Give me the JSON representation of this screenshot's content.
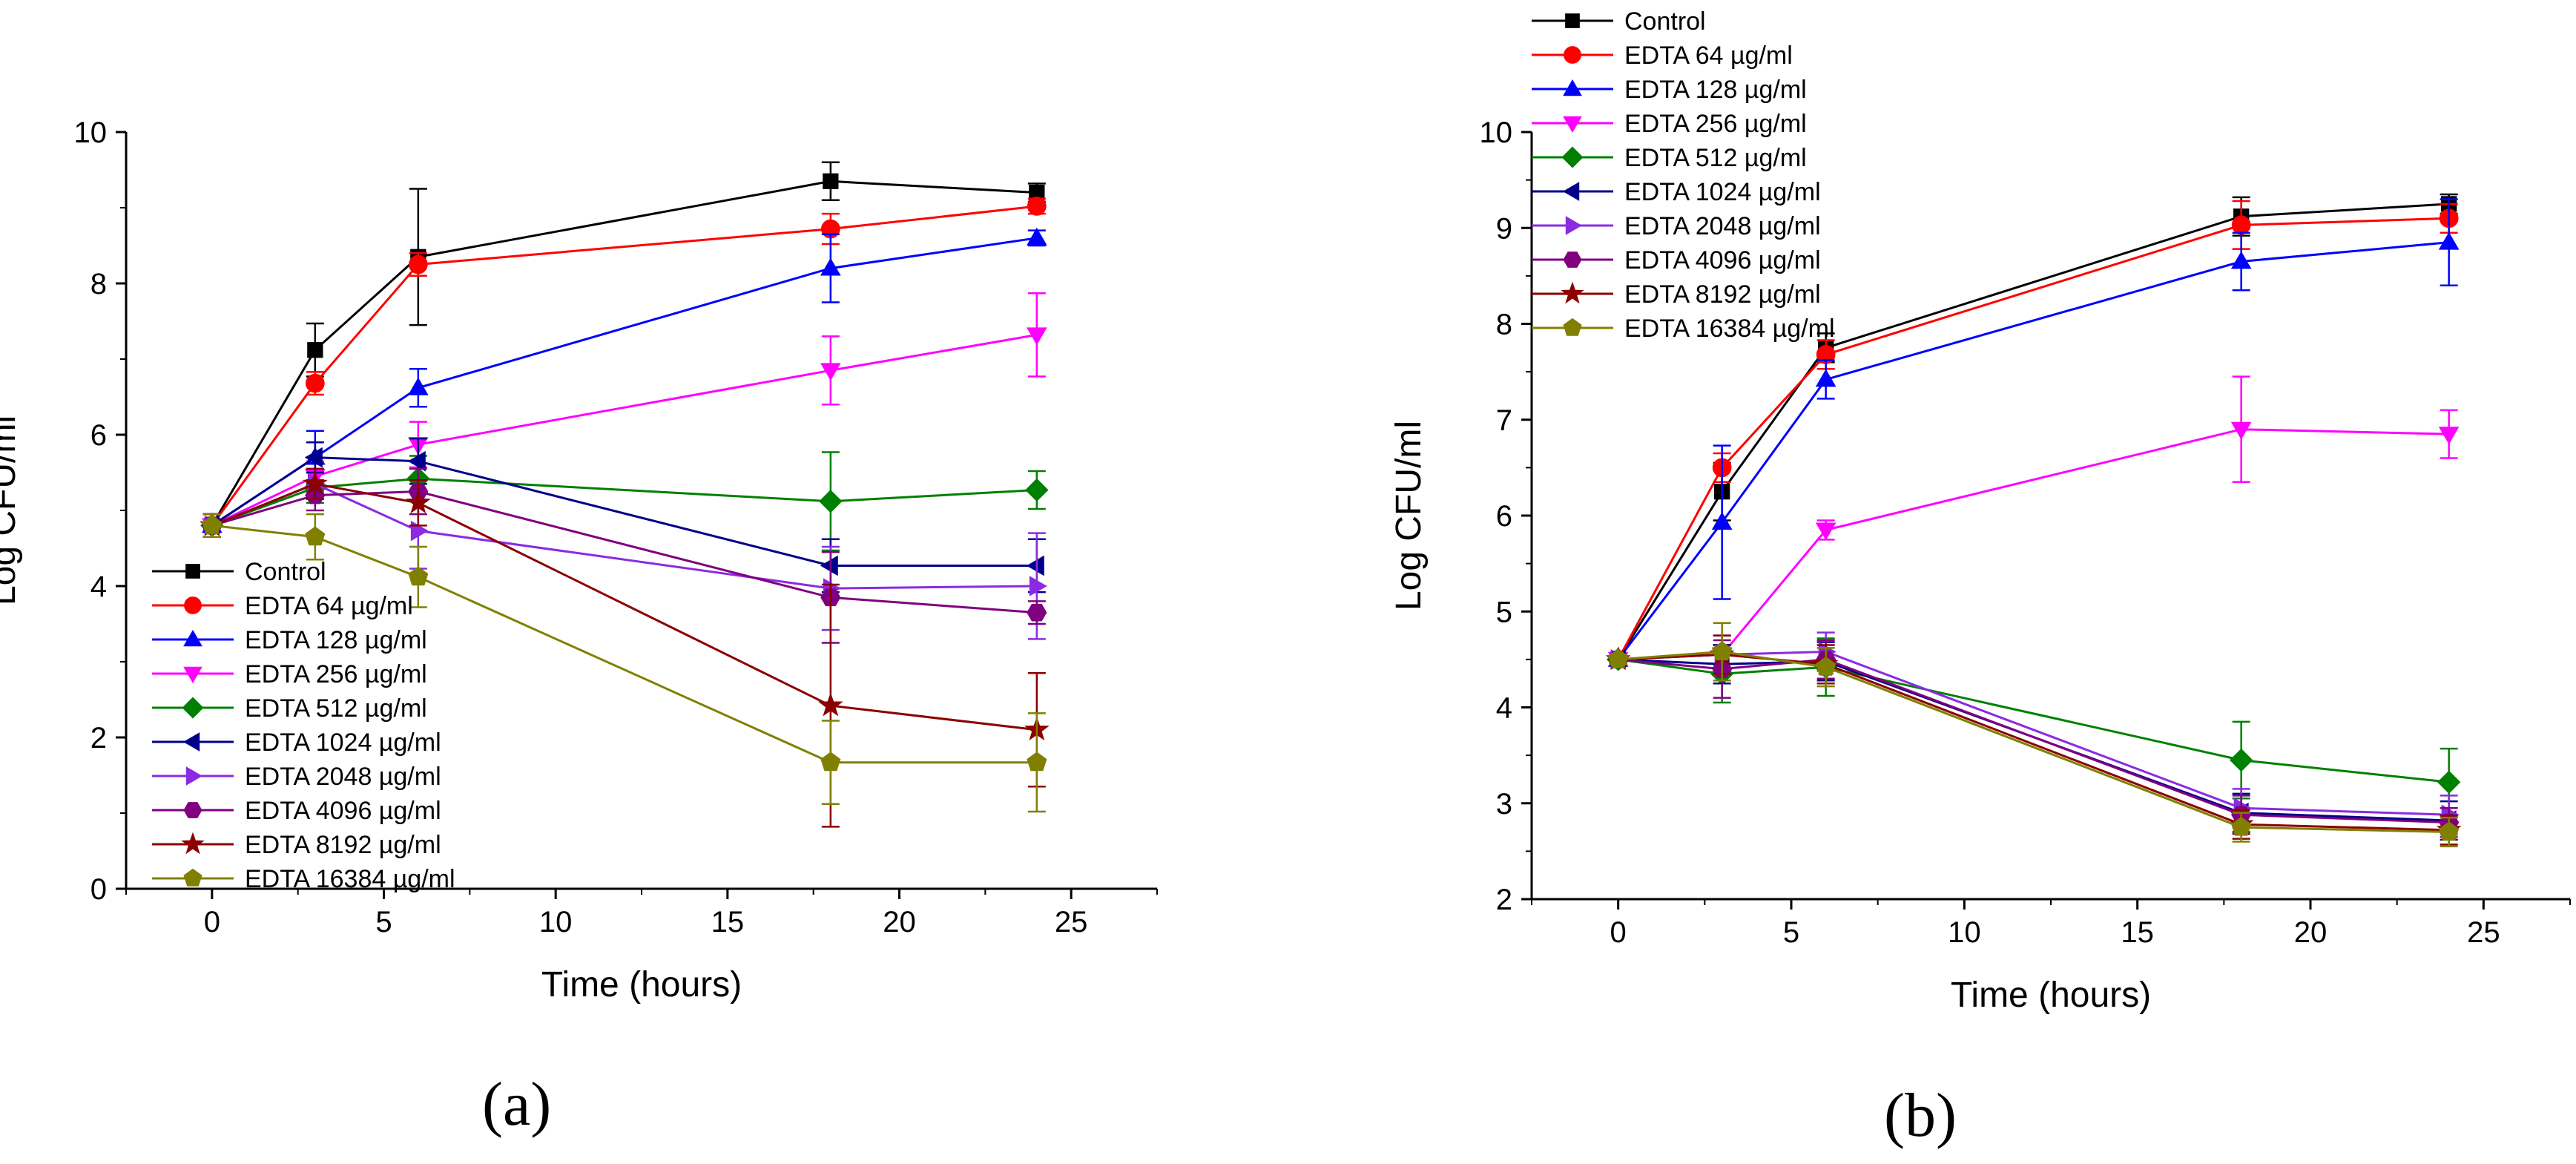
{
  "chart_data": [
    {
      "type": "line",
      "panel_label": "(a)",
      "xlabel": "Time (hours)",
      "ylabel": "Log CFU/ml",
      "xlim": [
        -2.5,
        27.5
      ],
      "ylim": [
        0,
        10
      ],
      "xticks": [
        0,
        5,
        10,
        15,
        20,
        25
      ],
      "yticks": [
        0,
        2,
        4,
        6,
        8,
        10
      ],
      "x": [
        0,
        3,
        6,
        18,
        24
      ],
      "legend_position": "bottom-left",
      "series": [
        {
          "name": "Control",
          "color": "#000000",
          "marker": "square",
          "values": [
            4.8,
            7.12,
            8.35,
            9.35,
            9.2
          ],
          "errors": [
            0.15,
            0.35,
            0.9,
            0.25,
            0.12
          ]
        },
        {
          "name": "EDTA 64 µg/ml",
          "color": "#ff0000",
          "marker": "circle",
          "values": [
            4.8,
            6.68,
            8.25,
            8.72,
            9.02
          ],
          "errors": [
            0.15,
            0.15,
            0.15,
            0.2,
            0.1
          ]
        },
        {
          "name": "EDTA 128 µg/ml",
          "color": "#0000ff",
          "marker": "triangle-up",
          "values": [
            4.8,
            5.7,
            6.62,
            8.2,
            8.6
          ],
          "errors": [
            0.15,
            0.35,
            0.25,
            0.45,
            0.1
          ]
        },
        {
          "name": "EDTA 256 µg/ml",
          "color": "#ff00ff",
          "marker": "triangle-down",
          "values": [
            4.8,
            5.45,
            5.87,
            6.85,
            7.32
          ],
          "errors": [
            0.15,
            0.2,
            0.3,
            0.45,
            0.55
          ]
        },
        {
          "name": "EDTA 512 µg/ml",
          "color": "#008000",
          "marker": "diamond",
          "values": [
            4.8,
            5.3,
            5.42,
            5.12,
            5.27
          ],
          "errors": [
            0.15,
            0.2,
            0.3,
            0.65,
            0.25
          ]
        },
        {
          "name": "EDTA 1024 µg/ml",
          "color": "#00008b",
          "marker": "triangle-left",
          "values": [
            4.8,
            5.7,
            5.65,
            4.27,
            4.27
          ],
          "errors": [
            0.15,
            0.2,
            0.3,
            0.35,
            0.35
          ]
        },
        {
          "name": "EDTA 2048 µg/ml",
          "color": "#8a2be2",
          "marker": "triangle-right",
          "values": [
            4.8,
            5.35,
            4.73,
            3.97,
            4.0
          ],
          "errors": [
            0.15,
            0.2,
            0.5,
            0.55,
            0.7
          ]
        },
        {
          "name": "EDTA 4096 µg/ml",
          "color": "#800080",
          "marker": "hexagon",
          "values": [
            4.8,
            5.2,
            5.25,
            3.85,
            3.65
          ],
          "errors": [
            0.15,
            0.2,
            0.3,
            0.6,
            0.15
          ]
        },
        {
          "name": "EDTA 8192 µg/ml",
          "color": "#8b0000",
          "marker": "star",
          "values": [
            4.8,
            5.35,
            5.1,
            2.42,
            2.1
          ],
          "errors": [
            0.15,
            0.2,
            0.3,
            1.6,
            0.75
          ]
        },
        {
          "name": "EDTA 16384 µg/ml",
          "color": "#808000",
          "marker": "pentagon",
          "values": [
            4.8,
            4.65,
            4.12,
            1.67,
            1.67
          ],
          "errors": [
            0.15,
            0.3,
            0.4,
            0.55,
            0.65
          ]
        }
      ]
    },
    {
      "type": "line",
      "panel_label": "(b)",
      "xlabel": "Time (hours)",
      "ylabel": "Log CFU/ml",
      "xlim": [
        -2.5,
        27.5
      ],
      "ylim": [
        2,
        10
      ],
      "xticks": [
        0,
        5,
        10,
        15,
        20,
        25
      ],
      "yticks": [
        2,
        3,
        4,
        5,
        6,
        7,
        8,
        9,
        10
      ],
      "x": [
        0,
        3,
        6,
        18,
        24
      ],
      "legend_position": "top-left",
      "series": [
        {
          "name": "Control",
          "color": "#000000",
          "marker": "square",
          "values": [
            4.5,
            6.25,
            7.75,
            9.12,
            9.25
          ],
          "errors": [
            0.05,
            0.3,
            0.15,
            0.2,
            0.1
          ]
        },
        {
          "name": "EDTA 64 µg/ml",
          "color": "#ff0000",
          "marker": "circle",
          "values": [
            4.5,
            6.5,
            7.68,
            9.03,
            9.1
          ],
          "errors": [
            0.05,
            0.15,
            0.15,
            0.25,
            0.15
          ]
        },
        {
          "name": "EDTA 128 µg/ml",
          "color": "#0000ff",
          "marker": "triangle-up",
          "values": [
            4.5,
            5.93,
            7.42,
            8.65,
            8.85
          ],
          "errors": [
            0.05,
            0.8,
            0.2,
            0.3,
            0.45
          ]
        },
        {
          "name": "EDTA 256 µg/ml",
          "color": "#ff00ff",
          "marker": "triangle-down",
          "values": [
            4.5,
            4.55,
            5.85,
            6.9,
            6.85
          ],
          "errors": [
            0.05,
            0.1,
            0.1,
            0.55,
            0.25
          ]
        },
        {
          "name": "EDTA 512 µg/ml",
          "color": "#008000",
          "marker": "diamond",
          "values": [
            4.5,
            4.35,
            4.42,
            3.45,
            3.22
          ],
          "errors": [
            0.05,
            0.3,
            0.3,
            0.4,
            0.35
          ]
        },
        {
          "name": "EDTA 1024 µg/ml",
          "color": "#00008b",
          "marker": "triangle-left",
          "values": [
            4.5,
            4.45,
            4.48,
            2.9,
            2.82
          ],
          "errors": [
            0.05,
            0.2,
            0.2,
            0.2,
            0.2
          ]
        },
        {
          "name": "EDTA 2048 µg/ml",
          "color": "#8a2be2",
          "marker": "triangle-right",
          "values": [
            4.5,
            4.55,
            4.58,
            2.95,
            2.88
          ],
          "errors": [
            0.05,
            0.2,
            0.2,
            0.2,
            0.2
          ]
        },
        {
          "name": "EDTA 4096 µg/ml",
          "color": "#800080",
          "marker": "hexagon",
          "values": [
            4.5,
            4.4,
            4.5,
            2.88,
            2.8
          ],
          "errors": [
            0.05,
            0.3,
            0.2,
            0.2,
            0.15
          ]
        },
        {
          "name": "EDTA 8192 µg/ml",
          "color": "#8b0000",
          "marker": "star",
          "values": [
            4.5,
            4.55,
            4.45,
            2.78,
            2.72
          ],
          "errors": [
            0.05,
            0.2,
            0.2,
            0.15,
            0.15
          ]
        },
        {
          "name": "EDTA 16384 µg/ml",
          "color": "#808000",
          "marker": "pentagon",
          "values": [
            4.5,
            4.58,
            4.42,
            2.75,
            2.7
          ],
          "errors": [
            0.05,
            0.3,
            0.2,
            0.15,
            0.15
          ]
        }
      ]
    }
  ]
}
